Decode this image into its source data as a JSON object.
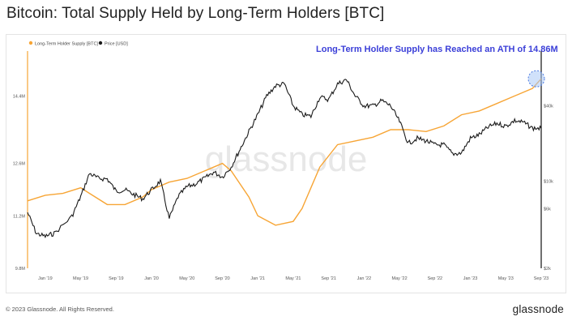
{
  "title": "Bitcoin: Total Supply Held by Long-Term Holders [BTC]",
  "footer": {
    "copyright": "© 2023 Glassnode. All Rights Reserved.",
    "logo": "glassnode"
  },
  "watermark": "glassnode",
  "colors": {
    "lth_supply": "#f7a535",
    "price": "#1a1a1a",
    "annotation": "#3b3fd8",
    "highlight": "#a9c8f5"
  },
  "chart_data": {
    "type": "line",
    "title": "Bitcoin: Total Supply Held by Long-Term Holders [BTC]",
    "annotation": "Long-Term Holder Supply has Reached an ATH of 14.86M",
    "legend": [
      "Long-Term Holder Supply [BTC]",
      "Price [USD]"
    ],
    "legend_position": "top-left",
    "x_ticks": [
      "Jan '19",
      "May '19",
      "Sep '19",
      "Jan '20",
      "May '20",
      "Sep '20",
      "Jan '21",
      "May '21",
      "Sep '21",
      "Jan '22",
      "May '22",
      "Sep '22",
      "Jan '23",
      "May '23",
      "Sep '23"
    ],
    "x_range": [
      "2018-11",
      "2023-09"
    ],
    "y_left": {
      "label": "",
      "ticks": [
        "9.8M",
        "11.2M",
        "12.6M",
        "14.4M"
      ],
      "unit": "BTC"
    },
    "y_right": {
      "label": "",
      "scale": "log",
      "ticks": [
        "$2k",
        "$6k",
        "$10k",
        "$40k"
      ],
      "unit": "USD"
    },
    "grid": false,
    "series": [
      {
        "name": "Long-Term Holder Supply [BTC]",
        "axis": "left",
        "points": [
          [
            "2018-11",
            11.6
          ],
          [
            "2019-01",
            11.75
          ],
          [
            "2019-03",
            11.8
          ],
          [
            "2019-05",
            11.95
          ],
          [
            "2019-06",
            11.8
          ],
          [
            "2019-08",
            11.5
          ],
          [
            "2019-10",
            11.5
          ],
          [
            "2019-12",
            11.7
          ],
          [
            "2020-01",
            11.9
          ],
          [
            "2020-03",
            12.1
          ],
          [
            "2020-05",
            12.2
          ],
          [
            "2020-07",
            12.4
          ],
          [
            "2020-09",
            12.6
          ],
          [
            "2020-10",
            12.4
          ],
          [
            "2020-12",
            11.7
          ],
          [
            "2021-01",
            11.2
          ],
          [
            "2021-03",
            10.95
          ],
          [
            "2021-05",
            11.05
          ],
          [
            "2021-06",
            11.4
          ],
          [
            "2021-08",
            12.5
          ],
          [
            "2021-10",
            13.1
          ],
          [
            "2021-12",
            13.2
          ],
          [
            "2022-02",
            13.3
          ],
          [
            "2022-04",
            13.5
          ],
          [
            "2022-06",
            13.5
          ],
          [
            "2022-08",
            13.45
          ],
          [
            "2022-10",
            13.6
          ],
          [
            "2022-12",
            13.9
          ],
          [
            "2023-02",
            14.0
          ],
          [
            "2023-04",
            14.2
          ],
          [
            "2023-06",
            14.4
          ],
          [
            "2023-08",
            14.6
          ],
          [
            "2023-09",
            14.86
          ]
        ]
      },
      {
        "name": "Price [USD]",
        "axis": "right",
        "points": [
          [
            "2018-11",
            5600
          ],
          [
            "2018-12",
            3800
          ],
          [
            "2019-01",
            3600
          ],
          [
            "2019-02",
            3800
          ],
          [
            "2019-04",
            5200
          ],
          [
            "2019-05",
            7500
          ],
          [
            "2019-06",
            11500
          ],
          [
            "2019-07",
            10500
          ],
          [
            "2019-08",
            10400
          ],
          [
            "2019-09",
            8300
          ],
          [
            "2019-10",
            8500
          ],
          [
            "2019-11",
            7800
          ],
          [
            "2019-12",
            7200
          ],
          [
            "2020-01",
            8500
          ],
          [
            "2020-02",
            10000
          ],
          [
            "2020-03",
            5000
          ],
          [
            "2020-04",
            7500
          ],
          [
            "2020-05",
            9000
          ],
          [
            "2020-06",
            9500
          ],
          [
            "2020-07",
            10500
          ],
          [
            "2020-08",
            11800
          ],
          [
            "2020-09",
            10800
          ],
          [
            "2020-10",
            13000
          ],
          [
            "2020-11",
            18000
          ],
          [
            "2020-12",
            25000
          ],
          [
            "2021-01",
            34000
          ],
          [
            "2021-02",
            48000
          ],
          [
            "2021-03",
            58000
          ],
          [
            "2021-04",
            60000
          ],
          [
            "2021-05",
            40000
          ],
          [
            "2021-06",
            34000
          ],
          [
            "2021-07",
            33000
          ],
          [
            "2021-08",
            47000
          ],
          [
            "2021-09",
            45000
          ],
          [
            "2021-10",
            60000
          ],
          [
            "2021-11",
            65000
          ],
          [
            "2021-12",
            48000
          ],
          [
            "2022-01",
            40000
          ],
          [
            "2022-02",
            40000
          ],
          [
            "2022-03",
            44000
          ],
          [
            "2022-04",
            40000
          ],
          [
            "2022-05",
            30000
          ],
          [
            "2022-06",
            20000
          ],
          [
            "2022-07",
            22000
          ],
          [
            "2022-08",
            21000
          ],
          [
            "2022-09",
            19500
          ],
          [
            "2022-10",
            19500
          ],
          [
            "2022-11",
            16500
          ],
          [
            "2022-12",
            16800
          ],
          [
            "2023-01",
            22000
          ],
          [
            "2023-02",
            23500
          ],
          [
            "2023-03",
            27000
          ],
          [
            "2023-04",
            29000
          ],
          [
            "2023-05",
            27500
          ],
          [
            "2023-06",
            30500
          ],
          [
            "2023-07",
            29500
          ],
          [
            "2023-08",
            26500
          ],
          [
            "2023-09",
            26500
          ]
        ]
      }
    ]
  }
}
